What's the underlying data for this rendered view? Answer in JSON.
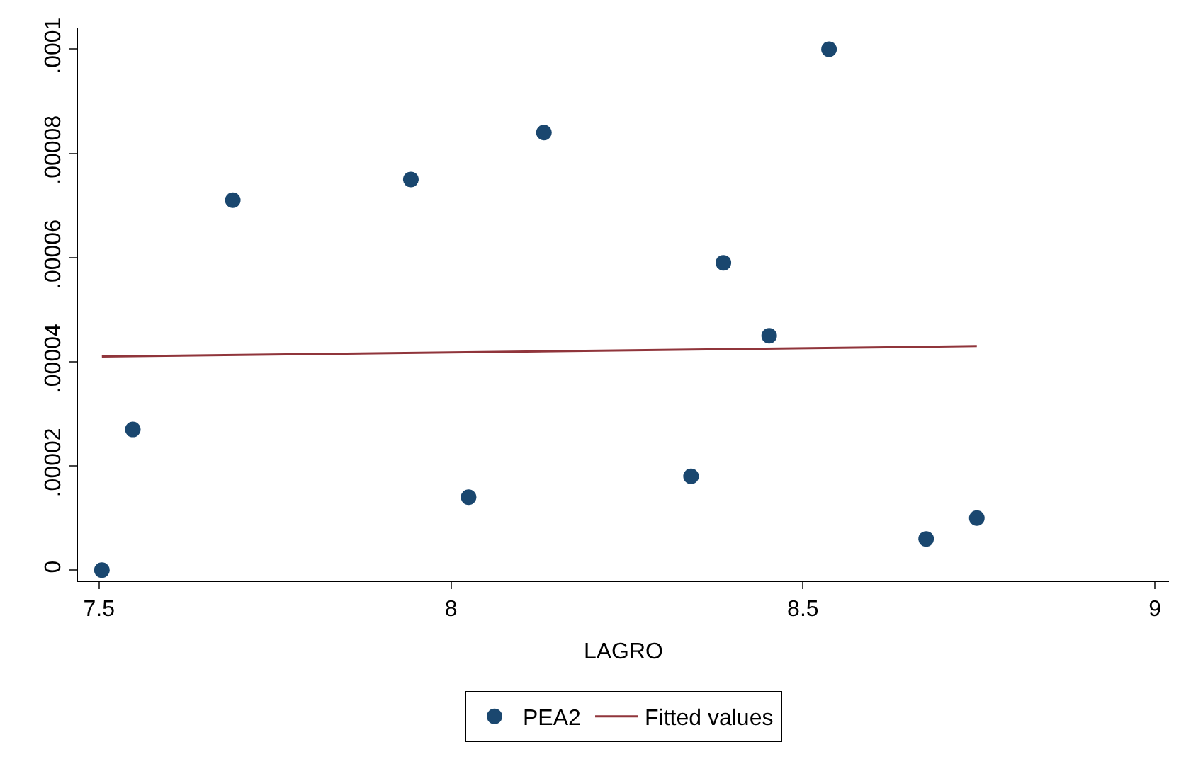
{
  "chart_data": {
    "type": "scatter",
    "xlabel": "LAGRO",
    "xlim": [
      7.47,
      9.02
    ],
    "xticks": [
      7.5,
      8,
      8.5,
      9
    ],
    "ylim": [
      -2e-06,
      0.000104
    ],
    "yticks": [
      {
        "value": 0,
        "label": "0"
      },
      {
        "value": 2e-05,
        "label": ".00002"
      },
      {
        "value": 4e-05,
        "label": ".00004"
      },
      {
        "value": 6e-05,
        "label": ".00006"
      },
      {
        "value": 8e-05,
        "label": ".00008"
      },
      {
        "value": 0.0001,
        "label": ".0001"
      }
    ],
    "x": [
      7.504,
      7.548,
      7.69,
      7.943,
      8.025,
      8.132,
      8.341,
      8.387,
      8.452,
      8.537,
      8.675,
      8.747
    ],
    "series": [
      {
        "name": "PEA2",
        "color": "#1a476f",
        "marker": "circle",
        "values": [
          0.0,
          2.7e-05,
          7.1e-05,
          7.5e-05,
          1.4e-05,
          8.4e-05,
          1.8e-05,
          5.9e-05,
          4.5e-05,
          0.0001,
          6e-06,
          1e-05
        ]
      },
      {
        "name": "Fitted values",
        "type": "line",
        "color": "#90353b",
        "marker": "none",
        "line_style": "solid",
        "x": [
          7.504,
          8.747
        ],
        "values": [
          4.1e-05,
          4.3e-05
        ]
      }
    ],
    "grid": false,
    "legend": "bottom"
  }
}
